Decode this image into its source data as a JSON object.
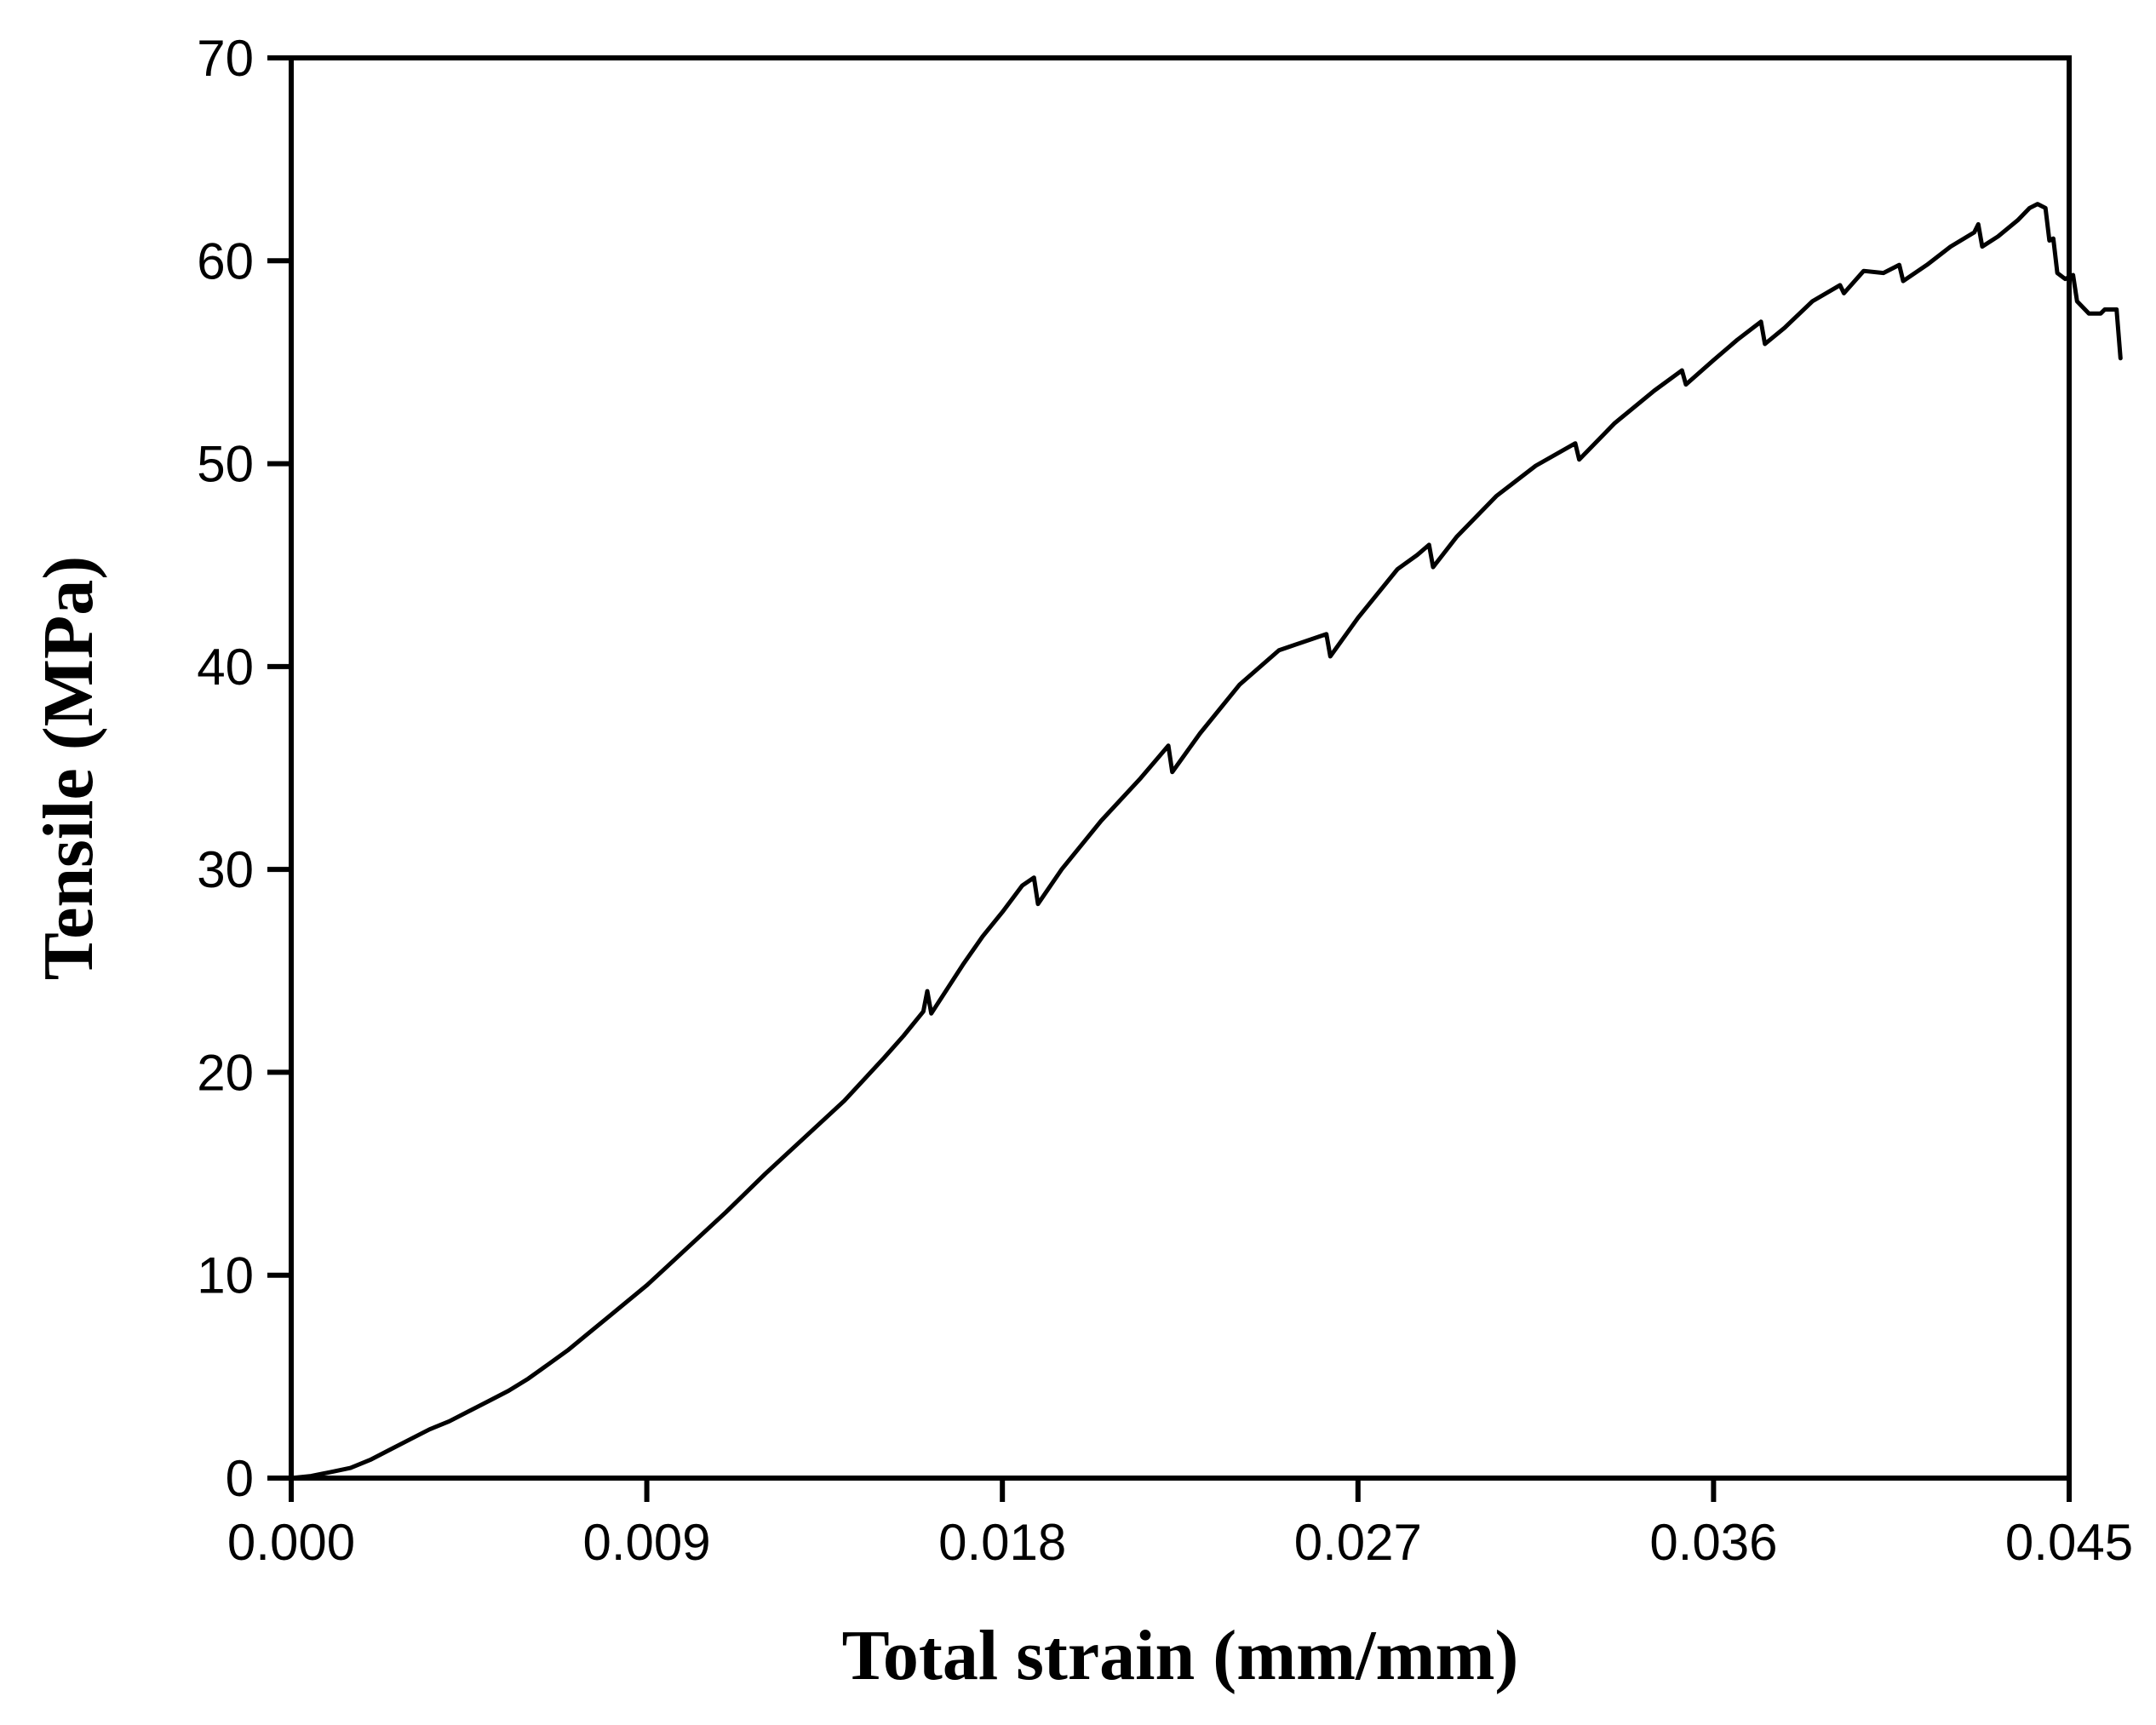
{
  "chart_data": {
    "type": "line",
    "title": "",
    "xlabel": "Total strain (mm/mm)",
    "ylabel": "Tensile (MPa)",
    "xlim": [
      0,
      0.045
    ],
    "ylim": [
      0,
      70
    ],
    "grid": false,
    "legend": "none",
    "xticks": [
      {
        "value": 0,
        "label": "0.000"
      },
      {
        "value": 0.009,
        "label": "0.009"
      },
      {
        "value": 0.018,
        "label": "0.018"
      },
      {
        "value": 0.027,
        "label": "0.027"
      },
      {
        "value": 0.036,
        "label": "0.036"
      },
      {
        "value": 0.045,
        "label": "0.045"
      }
    ],
    "yticks": [
      {
        "value": 0,
        "label": "0"
      },
      {
        "value": 10,
        "label": "10"
      },
      {
        "value": 20,
        "label": "20"
      },
      {
        "value": 30,
        "label": "30"
      },
      {
        "value": 40,
        "label": "40"
      },
      {
        "value": 50,
        "label": "50"
      },
      {
        "value": 60,
        "label": "60"
      },
      {
        "value": 70,
        "label": "70"
      }
    ],
    "series": [
      {
        "color": "#000000",
        "points": [
          [
            0.0,
            0.0
          ],
          [
            0.0005,
            0.1
          ],
          [
            0.001,
            0.3
          ],
          [
            0.0015,
            0.5
          ],
          [
            0.002,
            0.9
          ],
          [
            0.0025,
            1.4
          ],
          [
            0.003,
            1.9
          ],
          [
            0.0035,
            2.4
          ],
          [
            0.004,
            2.8
          ],
          [
            0.0045,
            3.3
          ],
          [
            0.005,
            3.8
          ],
          [
            0.0055,
            4.3
          ],
          [
            0.006,
            4.9
          ],
          [
            0.0065,
            5.6
          ],
          [
            0.007,
            6.3
          ],
          [
            0.0075,
            7.1
          ],
          [
            0.008,
            7.9
          ],
          [
            0.0085,
            8.7
          ],
          [
            0.009,
            9.5
          ],
          [
            0.0095,
            10.4
          ],
          [
            0.01,
            11.3
          ],
          [
            0.011,
            13.1
          ],
          [
            0.012,
            15.0
          ],
          [
            0.013,
            16.8
          ],
          [
            0.014,
            18.6
          ],
          [
            0.015,
            20.7
          ],
          [
            0.0155,
            21.8
          ],
          [
            0.016,
            23.0
          ],
          [
            0.0161,
            24.0
          ],
          [
            0.0162,
            22.9
          ],
          [
            0.017,
            25.3
          ],
          [
            0.0175,
            26.7
          ],
          [
            0.018,
            27.9
          ],
          [
            0.0185,
            29.2
          ],
          [
            0.0188,
            29.6
          ],
          [
            0.0189,
            28.3
          ],
          [
            0.0195,
            30.0
          ],
          [
            0.0205,
            32.4
          ],
          [
            0.0215,
            34.5
          ],
          [
            0.0222,
            36.1
          ],
          [
            0.0223,
            34.8
          ],
          [
            0.023,
            36.7
          ],
          [
            0.024,
            39.1
          ],
          [
            0.025,
            40.8
          ],
          [
            0.0262,
            41.6
          ],
          [
            0.0263,
            40.5
          ],
          [
            0.027,
            42.4
          ],
          [
            0.028,
            44.8
          ],
          [
            0.0285,
            45.5
          ],
          [
            0.0288,
            46.0
          ],
          [
            0.0289,
            44.9
          ],
          [
            0.0295,
            46.4
          ],
          [
            0.0305,
            48.4
          ],
          [
            0.0315,
            49.9
          ],
          [
            0.0325,
            51.0
          ],
          [
            0.0326,
            50.2
          ],
          [
            0.0335,
            52.0
          ],
          [
            0.0345,
            53.6
          ],
          [
            0.0352,
            54.6
          ],
          [
            0.0353,
            53.9
          ],
          [
            0.036,
            55.1
          ],
          [
            0.0366,
            56.1
          ],
          [
            0.0372,
            57.0
          ],
          [
            0.0373,
            55.9
          ],
          [
            0.0378,
            56.7
          ],
          [
            0.0385,
            58.0
          ],
          [
            0.0392,
            58.8
          ],
          [
            0.0393,
            58.4
          ],
          [
            0.0398,
            59.5
          ],
          [
            0.0403,
            59.4
          ],
          [
            0.0407,
            59.8
          ],
          [
            0.0408,
            59.0
          ],
          [
            0.0414,
            59.8
          ],
          [
            0.042,
            60.7
          ],
          [
            0.0426,
            61.4
          ],
          [
            0.0427,
            61.8
          ],
          [
            0.0428,
            60.7
          ],
          [
            0.0432,
            61.2
          ],
          [
            0.0437,
            62.0
          ],
          [
            0.044,
            62.6
          ],
          [
            0.0442,
            62.8
          ],
          [
            0.0444,
            62.6
          ],
          [
            0.0445,
            61.0
          ],
          [
            0.0446,
            61.1
          ],
          [
            0.0447,
            59.4
          ],
          [
            0.0449,
            59.1
          ],
          [
            0.0451,
            59.3
          ],
          [
            0.0452,
            58.0
          ],
          [
            0.0455,
            57.4
          ],
          [
            0.0458,
            57.4
          ],
          [
            0.0459,
            57.6
          ],
          [
            0.0462,
            57.6
          ],
          [
            0.0463,
            55.2
          ]
        ]
      }
    ]
  }
}
